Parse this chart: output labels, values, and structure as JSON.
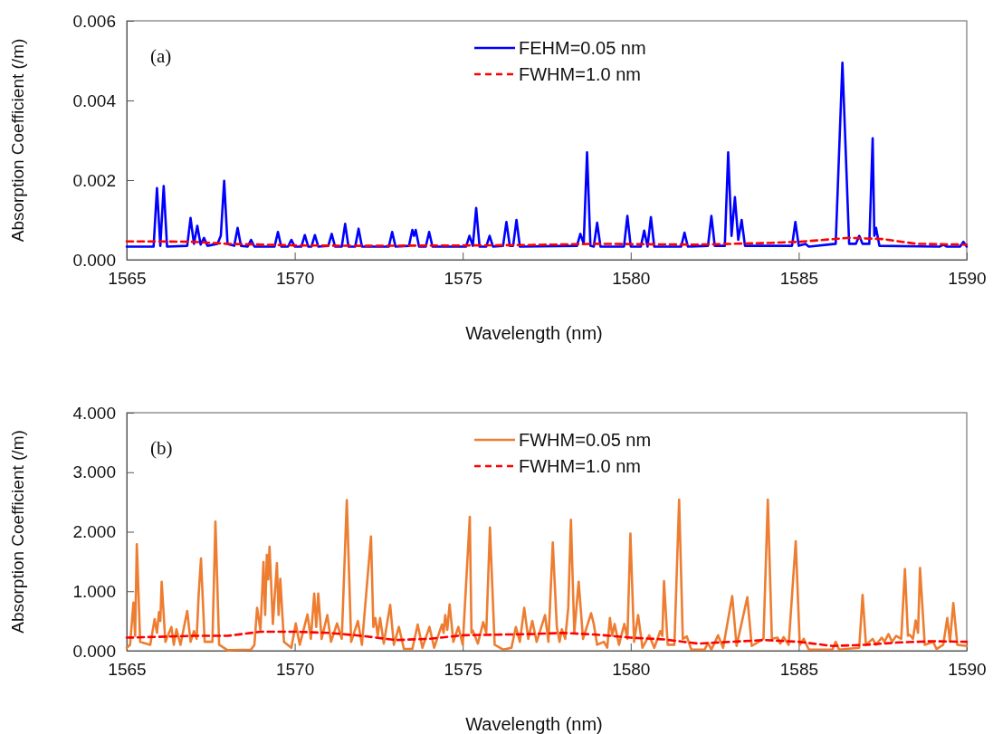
{
  "chart_data": [
    {
      "type": "line",
      "xlabel": "Wavelength (nm)",
      "ylabel": "Absorption Coefficient (/m)",
      "annotations": [
        "(a)"
      ],
      "xlim": [
        1565,
        1590
      ],
      "xticks": [
        1565,
        1570,
        1575,
        1580,
        1585,
        1590
      ],
      "ylim": [
        0,
        0.006
      ],
      "yticks": [
        {
          "value": 0,
          "label": "0.000"
        },
        {
          "value": 0.002,
          "label": "0.002"
        },
        {
          "value": 0.004,
          "label": "0.004"
        },
        {
          "value": 0.006,
          "label": "0.006"
        }
      ],
      "grid": false,
      "legend": "top",
      "marker": "none",
      "series": [
        {
          "name": "FEHM=0.05 nm",
          "color": "#0000ff",
          "line_style": "solid",
          "x": [
            1565,
            1565.8,
            1565.9,
            1566.0,
            1566.1,
            1566.2,
            1566.8,
            1566.9,
            1567.0,
            1567.1,
            1567.2,
            1567.3,
            1567.4,
            1567.7,
            1567.8,
            1567.9,
            1568.0,
            1568.2,
            1568.3,
            1568.4,
            1568.6,
            1568.7,
            1568.8,
            1569.4,
            1569.5,
            1569.6,
            1569.8,
            1569.9,
            1570.0,
            1570.2,
            1570.3,
            1570.4,
            1570.5,
            1570.6,
            1570.7,
            1571.0,
            1571.1,
            1571.2,
            1571.4,
            1571.5,
            1571.6,
            1571.8,
            1571.9,
            1572.0,
            1572.8,
            1572.9,
            1573.0,
            1573.4,
            1573.5,
            1573.55,
            1573.6,
            1573.7,
            1573.9,
            1574.0,
            1574.1,
            1575.1,
            1575.2,
            1575.3,
            1575.4,
            1575.5,
            1575.7,
            1575.8,
            1575.9,
            1576.2,
            1576.3,
            1576.4,
            1576.5,
            1576.6,
            1576.7,
            1578.4,
            1578.5,
            1578.6,
            1578.7,
            1578.8,
            1578.9,
            1579.0,
            1579.1,
            1579.8,
            1579.9,
            1580.0,
            1580.3,
            1580.4,
            1580.5,
            1580.6,
            1580.7,
            1581.5,
            1581.6,
            1581.7,
            1582.3,
            1582.4,
            1582.5,
            1582.8,
            1582.9,
            1583.0,
            1583.1,
            1583.2,
            1583.3,
            1583.4,
            1584.8,
            1584.9,
            1585.0,
            1585.2,
            1585.3,
            1586.1,
            1586.3,
            1586.5,
            1586.7,
            1586.8,
            1586.9,
            1587.1,
            1587.2,
            1587.25,
            1587.3,
            1587.4,
            1589.2,
            1589.3,
            1589.4,
            1589.8,
            1589.9,
            1590
          ],
          "values": [
            0.00033,
            0.00033,
            0.0018,
            0.00035,
            0.00185,
            0.00033,
            0.00035,
            0.00105,
            0.0004,
            0.00085,
            0.00038,
            0.00055,
            0.00035,
            0.0004,
            0.0006,
            0.00198,
            0.0004,
            0.00035,
            0.0008,
            0.00035,
            0.00033,
            0.0005,
            0.00033,
            0.00033,
            0.0007,
            0.00033,
            0.00033,
            0.0005,
            0.00033,
            0.00033,
            0.00062,
            0.00033,
            0.00033,
            0.00062,
            0.00033,
            0.00035,
            0.00065,
            0.00033,
            0.00033,
            0.0009,
            0.00033,
            0.00033,
            0.00078,
            0.00033,
            0.00033,
            0.0007,
            0.00033,
            0.00035,
            0.00075,
            0.0006,
            0.00075,
            0.00033,
            0.00033,
            0.0007,
            0.00033,
            0.00033,
            0.0006,
            0.00035,
            0.0013,
            0.00033,
            0.00033,
            0.0006,
            0.00033,
            0.00035,
            0.00095,
            0.00035,
            0.00035,
            0.001,
            0.00033,
            0.00035,
            0.00065,
            0.0004,
            0.0027,
            0.00035,
            0.00033,
            0.00093,
            0.00033,
            0.00033,
            0.0011,
            0.00033,
            0.00033,
            0.00073,
            0.00033,
            0.00107,
            0.00033,
            0.00033,
            0.00068,
            0.00033,
            0.00035,
            0.0011,
            0.00035,
            0.00035,
            0.0027,
            0.0006,
            0.00157,
            0.0005,
            0.001,
            0.00035,
            0.00035,
            0.00095,
            0.00035,
            0.0004,
            0.00033,
            0.0004,
            0.00495,
            0.0004,
            0.0004,
            0.0006,
            0.0004,
            0.0004,
            0.00305,
            0.0006,
            0.0008,
            0.00035,
            0.00033,
            0.00038,
            0.00033,
            0.00033,
            0.00045,
            0.00033
          ]
        },
        {
          "name": "FWHM=1.0 nm",
          "color": "#ff0000",
          "line_style": "dashed",
          "x": [
            1565,
            1566,
            1567,
            1568,
            1570,
            1572,
            1575,
            1577,
            1579,
            1582,
            1584,
            1585,
            1586.5,
            1587.5,
            1588.5,
            1590
          ],
          "values": [
            0.00046,
            0.00046,
            0.00045,
            0.0004,
            0.00036,
            0.00035,
            0.00036,
            0.00037,
            0.0004,
            0.00038,
            0.00042,
            0.00045,
            0.00055,
            0.00052,
            0.0004,
            0.00038
          ]
        }
      ]
    },
    {
      "type": "line",
      "xlabel": "Wavelength (nm)",
      "ylabel": "Absorption Coefficient (/m)",
      "annotations": [
        "(b)"
      ],
      "xlim": [
        1565,
        1590
      ],
      "xticks": [
        1565,
        1570,
        1575,
        1580,
        1585,
        1590
      ],
      "ylim": [
        0,
        4
      ],
      "yticks": [
        {
          "value": 0,
          "label": "0.000"
        },
        {
          "value": 1,
          "label": "1.000"
        },
        {
          "value": 2,
          "label": "2.000"
        },
        {
          "value": 3,
          "label": "3.000"
        },
        {
          "value": 4,
          "label": "4.000"
        }
      ],
      "grid": false,
      "legend": "top",
      "marker": "none",
      "series": [
        {
          "name": "FWHM=0.05 nm",
          "color": "#ed7d31",
          "line_style": "solid",
          "x": [
            1565,
            1565.1,
            1565.2,
            1565.25,
            1565.3,
            1565.4,
            1565.7,
            1565.83,
            1565.9,
            1565.96,
            1566.0,
            1566.04,
            1566.15,
            1566.33,
            1566.4,
            1566.48,
            1566.6,
            1566.8,
            1566.9,
            1567.0,
            1567.08,
            1567.14,
            1567.21,
            1567.32,
            1567.55,
            1567.64,
            1567.75,
            1568.0,
            1568.7,
            1568.8,
            1568.88,
            1568.98,
            1569.07,
            1569.12,
            1569.17,
            1569.21,
            1569.25,
            1569.35,
            1569.47,
            1569.52,
            1569.57,
            1569.68,
            1569.9,
            1570.03,
            1570.15,
            1570.38,
            1570.48,
            1570.58,
            1570.64,
            1570.7,
            1570.8,
            1570.97,
            1571.08,
            1571.26,
            1571.4,
            1571.55,
            1571.68,
            1571.88,
            1572.0,
            1572.27,
            1572.34,
            1572.4,
            1572.47,
            1572.54,
            1572.65,
            1572.84,
            1572.95,
            1573.1,
            1573.25,
            1573.5,
            1573.66,
            1573.8,
            1574.01,
            1574.15,
            1574.38,
            1574.43,
            1574.48,
            1574.54,
            1574.61,
            1574.72,
            1574.87,
            1575.0,
            1575.21,
            1575.26,
            1575.3,
            1575.45,
            1575.61,
            1575.7,
            1575.81,
            1575.95,
            1576.2,
            1576.45,
            1576.58,
            1576.7,
            1576.83,
            1576.95,
            1577.07,
            1577.2,
            1577.45,
            1577.55,
            1577.68,
            1577.8,
            1577.88,
            1577.95,
            1578.05,
            1578.14,
            1578.22,
            1578.32,
            1578.45,
            1578.58,
            1578.82,
            1578.9,
            1579.0,
            1579.2,
            1579.3,
            1579.38,
            1579.45,
            1579.52,
            1579.65,
            1579.81,
            1579.9,
            1579.99,
            1580.1,
            1580.22,
            1580.35,
            1580.55,
            1580.7,
            1580.88,
            1580.94,
            1580.99,
            1581.1,
            1581.3,
            1581.44,
            1581.55,
            1581.67,
            1581.8,
            1582.2,
            1582.3,
            1582.4,
            1582.6,
            1582.75,
            1583.02,
            1583.15,
            1583.47,
            1583.6,
            1583.95,
            1584.08,
            1584.2,
            1584.37,
            1584.45,
            1584.55,
            1584.7,
            1584.91,
            1585.03,
            1585.15,
            1585.3,
            1586.0,
            1586.1,
            1586.2,
            1586.8,
            1586.9,
            1587.0,
            1587.2,
            1587.3,
            1587.47,
            1587.55,
            1587.67,
            1587.78,
            1587.9,
            1588.05,
            1588.16,
            1588.25,
            1588.3,
            1588.4,
            1588.48,
            1588.55,
            1588.61,
            1588.75,
            1589.0,
            1589.1,
            1589.3,
            1589.42,
            1589.5,
            1589.6,
            1589.72,
            1590
          ],
          "values": [
            0.05,
            0.1,
            0.81,
            0.25,
            1.79,
            0.15,
            0.1,
            0.53,
            0.3,
            0.65,
            0.5,
            1.16,
            0.15,
            0.4,
            0.1,
            0.36,
            0.1,
            0.67,
            0.15,
            0.33,
            0.2,
            0.93,
            1.55,
            0.15,
            0.15,
            2.17,
            0.1,
            0.01,
            0.02,
            0.1,
            0.72,
            0.35,
            1.49,
            0.6,
            1.61,
            1.2,
            1.75,
            0.45,
            1.47,
            0.6,
            1.21,
            0.15,
            0.05,
            0.46,
            0.1,
            0.61,
            0.2,
            0.96,
            0.4,
            0.96,
            0.2,
            0.6,
            0.15,
            0.46,
            0.2,
            2.53,
            0.15,
            0.5,
            0.1,
            1.92,
            0.4,
            0.55,
            0.25,
            0.55,
            0.12,
            0.77,
            0.1,
            0.4,
            0.03,
            0.03,
            0.44,
            0.05,
            0.4,
            0.05,
            0.44,
            0.3,
            0.6,
            0.35,
            0.78,
            0.15,
            0.4,
            0.1,
            2.25,
            0.3,
            0.34,
            0.12,
            0.48,
            0.3,
            2.07,
            0.1,
            0.02,
            0.05,
            0.4,
            0.15,
            0.72,
            0.2,
            0.5,
            0.15,
            0.6,
            0.15,
            1.82,
            0.4,
            0.15,
            0.36,
            0.2,
            0.72,
            2.2,
            0.3,
            1.16,
            0.2,
            0.63,
            0.45,
            0.1,
            0.15,
            0.05,
            0.55,
            0.25,
            0.45,
            0.1,
            0.45,
            0.2,
            1.97,
            0.15,
            0.6,
            0.05,
            0.26,
            0.05,
            0.33,
            0.25,
            1.17,
            0.1,
            0.1,
            2.54,
            0.2,
            0.24,
            0.02,
            0.02,
            0.13,
            0.02,
            0.26,
            0.05,
            0.92,
            0.08,
            0.9,
            0.08,
            0.2,
            2.54,
            0.2,
            0.22,
            0.12,
            0.23,
            0.1,
            1.84,
            0.1,
            0.2,
            0.02,
            0.02,
            0.15,
            0.02,
            0.05,
            0.94,
            0.1,
            0.2,
            0.1,
            0.22,
            0.15,
            0.28,
            0.15,
            0.25,
            0.2,
            1.37,
            0.25,
            0.27,
            0.2,
            0.51,
            0.3,
            1.39,
            0.1,
            0.15,
            0.03,
            0.1,
            0.55,
            0.15,
            0.8,
            0.1,
            0.08
          ]
        },
        {
          "name": "FWHM=1.0 nm",
          "color": "#ff0000",
          "line_style": "dashed",
          "x": [
            1565,
            1567,
            1568,
            1569,
            1570,
            1571,
            1572,
            1573,
            1574,
            1575,
            1576,
            1577,
            1578,
            1579,
            1580,
            1581,
            1582,
            1583,
            1584,
            1585,
            1586,
            1587,
            1588,
            1589,
            1590
          ],
          "values": [
            0.22,
            0.25,
            0.25,
            0.32,
            0.32,
            0.3,
            0.25,
            0.18,
            0.2,
            0.26,
            0.27,
            0.28,
            0.3,
            0.27,
            0.22,
            0.19,
            0.12,
            0.15,
            0.18,
            0.15,
            0.08,
            0.1,
            0.14,
            0.16,
            0.15
          ]
        }
      ]
    }
  ]
}
